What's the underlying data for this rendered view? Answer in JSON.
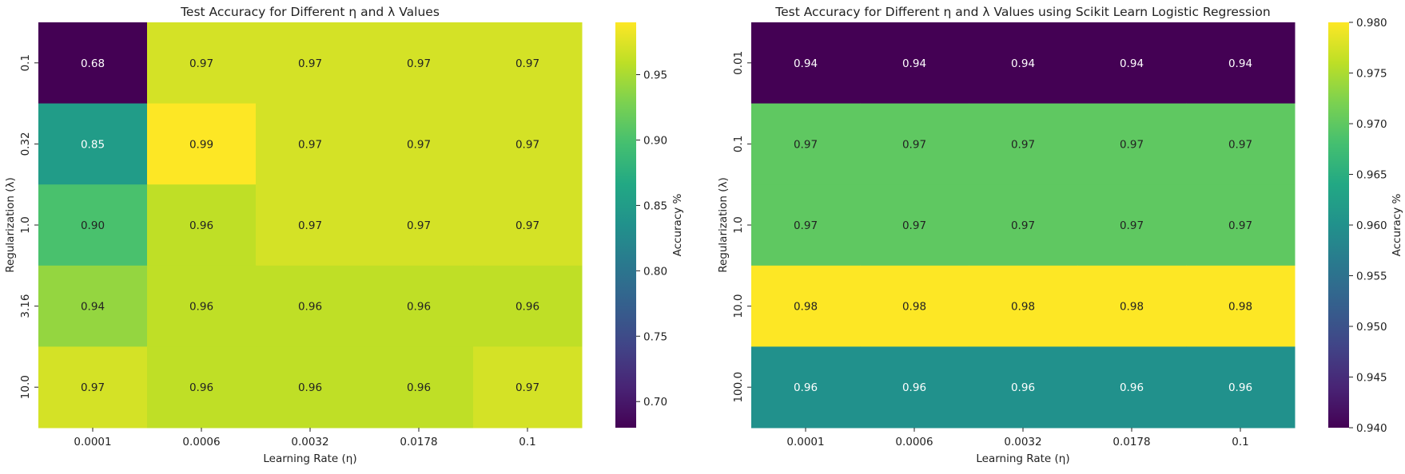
{
  "chart_data": [
    {
      "type": "heatmap",
      "title": "Test Accuracy for Different η and λ Values",
      "xlabel": "Learning Rate (η)",
      "ylabel": "Regularization (λ)",
      "x": [
        "0.0001",
        "0.0006",
        "0.0032",
        "0.0178",
        "0.1"
      ],
      "y": [
        "0.1",
        "0.32",
        "1.0",
        "3.16",
        "10.0"
      ],
      "values": [
        [
          0.68,
          0.97,
          0.97,
          0.97,
          0.97
        ],
        [
          0.85,
          0.99,
          0.97,
          0.97,
          0.97
        ],
        [
          0.9,
          0.96,
          0.97,
          0.97,
          0.97
        ],
        [
          0.94,
          0.96,
          0.96,
          0.96,
          0.96
        ],
        [
          0.97,
          0.96,
          0.96,
          0.96,
          0.97
        ]
      ],
      "colorscale": "viridis",
      "vmin": 0.68,
      "vmax": 0.99,
      "colorbar": {
        "label": "Accuracy %",
        "ticks": [
          "0.70",
          "0.75",
          "0.80",
          "0.85",
          "0.90",
          "0.95"
        ]
      }
    },
    {
      "type": "heatmap",
      "title": "Test Accuracy for Different η and λ Values using Scikit Learn Logistic Regression",
      "xlabel": "Learning Rate (η)",
      "ylabel": "Regularization (λ)",
      "x": [
        "0.0001",
        "0.0006",
        "0.0032",
        "0.0178",
        "0.1"
      ],
      "y": [
        "0.01",
        "0.1",
        "1.0",
        "10.0",
        "100.0"
      ],
      "values": [
        [
          0.94,
          0.94,
          0.94,
          0.94,
          0.94
        ],
        [
          0.97,
          0.97,
          0.97,
          0.97,
          0.97
        ],
        [
          0.97,
          0.97,
          0.97,
          0.97,
          0.97
        ],
        [
          0.98,
          0.98,
          0.98,
          0.98,
          0.98
        ],
        [
          0.96,
          0.96,
          0.96,
          0.96,
          0.96
        ]
      ],
      "colorscale": "viridis",
      "vmin": 0.94,
      "vmax": 0.98,
      "colorbar": {
        "label": "Accuracy %",
        "ticks": [
          "0.940",
          "0.945",
          "0.950",
          "0.955",
          "0.960",
          "0.965",
          "0.970",
          "0.975",
          "0.980"
        ]
      }
    }
  ]
}
